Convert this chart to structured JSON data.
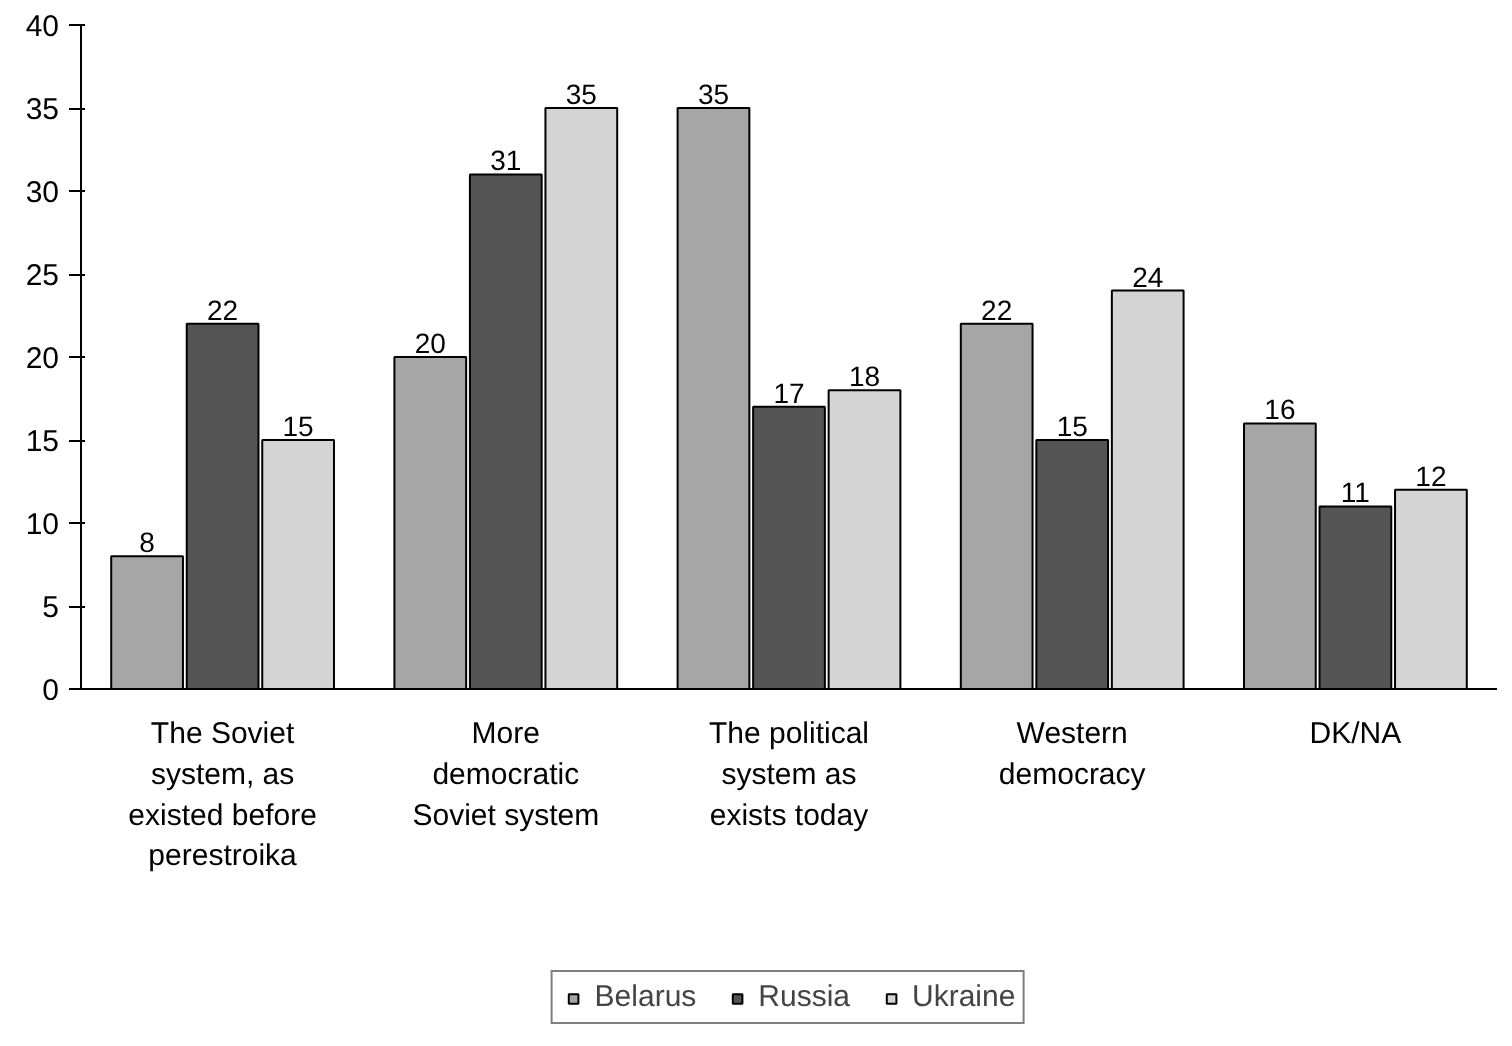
{
  "chart_data": {
    "type": "bar",
    "categories": [
      "The Soviet\nsystem, as\nexisted before\nperestroika",
      "More\ndemocratic\nSoviet system",
      "The political\nsystem as\nexists today",
      "Western\ndemocracy",
      "DK/NA"
    ],
    "series": [
      {
        "name": "Belarus",
        "color": "#a6a6a6",
        "values": [
          8,
          20,
          35,
          22,
          16
        ]
      },
      {
        "name": "Russia",
        "color": "#555555",
        "values": [
          22,
          31,
          17,
          15,
          11
        ]
      },
      {
        "name": "Ukraine",
        "color": "#d4d4d4",
        "values": [
          15,
          35,
          18,
          24,
          12
        ]
      }
    ],
    "ylim": [
      0,
      40
    ],
    "yticks": [
      0,
      5,
      10,
      15,
      20,
      25,
      30,
      35,
      40
    ],
    "data_labels": true,
    "legend": "bottom",
    "grid": false
  }
}
